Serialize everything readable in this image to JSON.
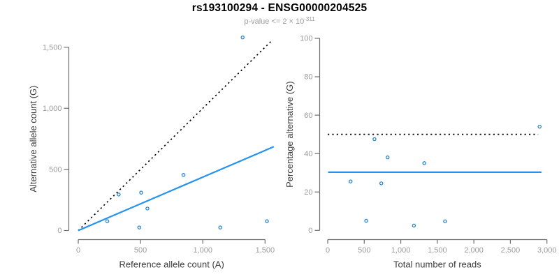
{
  "header": {
    "title": "rs193100294 - ENSG00000204525",
    "subtitle_prefix": "p-value <= 2 × 10",
    "subtitle_exponent": "-311"
  },
  "colors": {
    "title": "#000000",
    "subtitle": "#9c9c9c",
    "axis_line": "#6e6e6e",
    "tick_label": "#9b9b9b",
    "axis_title": "#3d3d3d",
    "fit_line_blue": "#2492f2",
    "point_blue": "#2e86d2",
    "reference_black": "#000000"
  },
  "chart_data": [
    {
      "id": "left",
      "type": "scatter",
      "xlabel": "Reference allele count (A)",
      "ylabel": "Alternative allele count (G)",
      "xlim": [
        0,
        1570
      ],
      "ylim": [
        0,
        1600
      ],
      "grid": false,
      "legend": null,
      "x_ticks": {
        "values": [
          0,
          500,
          1000,
          1500
        ],
        "labels": [
          "0",
          "500",
          "1,000",
          "1,500"
        ]
      },
      "y_ticks": {
        "values": [
          0,
          500,
          1000,
          1500
        ],
        "labels": [
          "0",
          "500",
          "1,000",
          "1,500"
        ]
      },
      "points": [
        [
          233,
          76
        ],
        [
          325,
          295
        ],
        [
          490,
          25
        ],
        [
          505,
          310
        ],
        [
          555,
          180
        ],
        [
          845,
          455
        ],
        [
          1140,
          25
        ],
        [
          1320,
          1580
        ],
        [
          1515,
          76
        ]
      ],
      "lines": [
        {
          "name": "identity-reference-line",
          "style": "dotted",
          "color": "#000000",
          "from": [
            0,
            0
          ],
          "to": [
            1555,
            1555
          ]
        },
        {
          "name": "fitted-ratio-line",
          "style": "solid",
          "color": "#2492f2",
          "from": [
            0,
            0
          ],
          "to": [
            1570,
            686
          ]
        }
      ]
    },
    {
      "id": "right",
      "type": "scatter",
      "xlabel": "Total number of reads",
      "ylabel": "Percentage alternative (G)",
      "xlim": [
        0,
        3000
      ],
      "ylim": [
        0,
        100
      ],
      "grid": false,
      "legend": null,
      "x_ticks": {
        "values": [
          0,
          500,
          1000,
          1500,
          2000,
          2500,
          3000
        ],
        "labels": [
          "0",
          "500",
          "1,000",
          "1,500",
          "2,000",
          "2,500",
          "3,000"
        ]
      },
      "y_ticks": {
        "values": [
          0,
          20,
          40,
          60,
          80,
          100
        ],
        "labels": [
          "0",
          "20",
          "40",
          "60",
          "80",
          "100"
        ]
      },
      "points": [
        [
          313,
          25.5
        ],
        [
          527,
          5
        ],
        [
          640,
          47.5
        ],
        [
          733,
          24.5
        ],
        [
          820,
          38
        ],
        [
          1180,
          2.5
        ],
        [
          1322,
          35
        ],
        [
          1606,
          4.7
        ],
        [
          2900,
          54
        ]
      ],
      "lines": [
        {
          "name": "expected-50pct-line",
          "style": "dotted",
          "color": "#000000",
          "from": [
            0,
            50
          ],
          "to": [
            2880,
            50
          ]
        },
        {
          "name": "fitted-ratio-line",
          "style": "solid",
          "color": "#2492f2",
          "from": [
            5,
            30.3
          ],
          "to": [
            2925,
            30.3
          ]
        }
      ]
    }
  ]
}
